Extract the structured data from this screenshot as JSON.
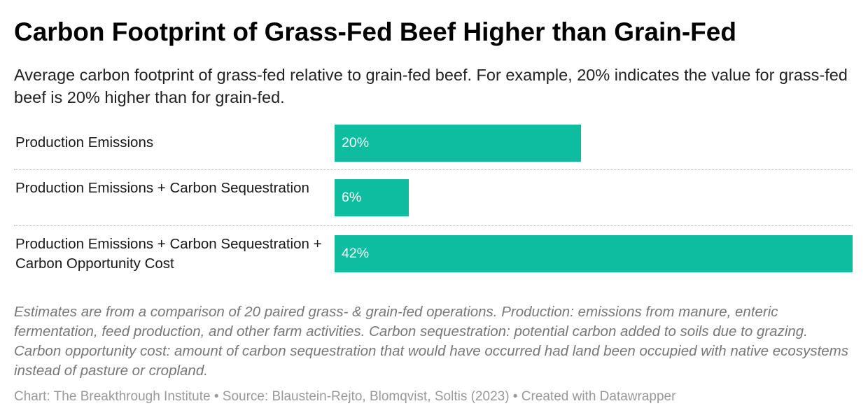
{
  "title": "Carbon Footprint of Grass-Fed Beef Higher than Grain-Fed",
  "subtitle": "Average carbon footprint of grass-fed relative to grain-fed beef. For example, 20% indicates the value for grass-fed beef is 20% higher than for grain-fed.",
  "chart_data": {
    "type": "bar",
    "orientation": "horizontal",
    "categories": [
      "Production Emissions",
      "Production Emissions + Carbon Sequestration",
      "Production Emissions + Carbon Sequestration + Carbon Opportunity Cost"
    ],
    "values": [
      20,
      6,
      42
    ],
    "value_labels": [
      "20%",
      "6%",
      "42%"
    ],
    "unit": "%",
    "xlim": [
      0,
      42
    ],
    "bar_color": "#0cbd9f",
    "grid": false,
    "legend": false
  },
  "notes": "Estimates are from a comparison of 20 paired grass- & grain-fed operations. Production: emissions from manure, enteric fermentation, feed production, and other farm activities. Carbon sequestration: potential carbon added to soils due to grazing. Carbon opportunity cost: amount of carbon sequestration that would have occurred had land been occupied with native ecosystems instead of pasture or cropland.",
  "footer": "Chart: The Breakthrough Institute • Source: Blaustein-Rejto, Blomqvist, Soltis (2023) • Created with Datawrapper"
}
